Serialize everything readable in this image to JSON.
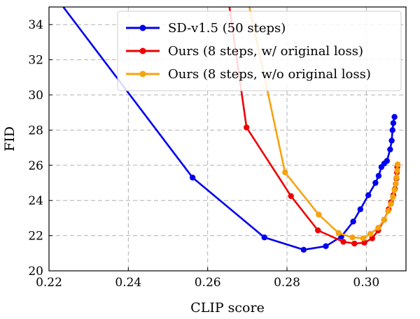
{
  "chart_data": {
    "type": "line",
    "title": "",
    "xlabel": "CLIP score",
    "ylabel": "FID",
    "xlim": [
      0.22,
      0.31
    ],
    "ylim": [
      20,
      35
    ],
    "xticks": [
      0.22,
      0.24,
      0.26,
      0.28,
      0.3
    ],
    "xtick_labels": [
      "0.22",
      "0.24",
      "0.26",
      "0.28",
      "0.30"
    ],
    "yticks": [
      20,
      22,
      24,
      26,
      28,
      30,
      32,
      34
    ],
    "ytick_labels": [
      "20",
      "22",
      "24",
      "26",
      "28",
      "30",
      "32",
      "34"
    ],
    "grid": true,
    "legend_position": "top-right",
    "series": [
      {
        "name": "SD-v1.5 (50 steps)",
        "color": "#0000ee",
        "marker_from": 1,
        "points": [
          [
            0.2236,
            35.0
          ],
          [
            0.2562,
            25.3
          ],
          [
            0.2743,
            21.9
          ],
          [
            0.2842,
            21.2
          ],
          [
            0.2898,
            21.4
          ],
          [
            0.2937,
            21.95
          ],
          [
            0.2967,
            22.8
          ],
          [
            0.2985,
            23.5
          ],
          [
            0.3005,
            24.3
          ],
          [
            0.3023,
            25.0
          ],
          [
            0.3031,
            25.4
          ],
          [
            0.3038,
            25.9
          ],
          [
            0.3045,
            26.1
          ],
          [
            0.3052,
            26.25
          ],
          [
            0.306,
            26.9
          ],
          [
            0.3064,
            27.4
          ],
          [
            0.3066,
            28.0
          ],
          [
            0.3068,
            28.4
          ],
          [
            0.3071,
            28.75
          ]
        ]
      },
      {
        "name": "Ours (8 steps, w/ original loss)",
        "color": "#ee0000",
        "marker_from": 1,
        "points": [
          [
            0.2655,
            35.0
          ],
          [
            0.2698,
            28.15
          ],
          [
            0.281,
            24.25
          ],
          [
            0.2878,
            22.3
          ],
          [
            0.2942,
            21.65
          ],
          [
            0.297,
            21.55
          ],
          [
            0.2995,
            21.6
          ],
          [
            0.3015,
            21.85
          ],
          [
            0.303,
            22.3
          ],
          [
            0.3045,
            22.9
          ],
          [
            0.3056,
            23.5
          ],
          [
            0.3062,
            23.9
          ],
          [
            0.3068,
            24.3
          ],
          [
            0.3072,
            24.65
          ],
          [
            0.3074,
            24.95
          ],
          [
            0.3076,
            25.25
          ],
          [
            0.3077,
            25.6
          ],
          [
            0.3078,
            25.9
          ]
        ]
      },
      {
        "name": "Ours (8 steps, w/o original loss)",
        "color": "#f5a30f",
        "marker_from": 1,
        "points": [
          [
            0.2705,
            35.0
          ],
          [
            0.2795,
            25.6
          ],
          [
            0.288,
            23.2
          ],
          [
            0.293,
            22.15
          ],
          [
            0.2965,
            21.9
          ],
          [
            0.2992,
            21.85
          ],
          [
            0.301,
            22.1
          ],
          [
            0.303,
            22.45
          ],
          [
            0.3045,
            22.9
          ],
          [
            0.3055,
            23.4
          ],
          [
            0.3062,
            23.8
          ],
          [
            0.3067,
            24.2
          ],
          [
            0.3071,
            24.6
          ],
          [
            0.3074,
            24.95
          ],
          [
            0.3076,
            25.3
          ],
          [
            0.3078,
            25.7
          ],
          [
            0.3079,
            26.05
          ]
        ]
      }
    ]
  }
}
